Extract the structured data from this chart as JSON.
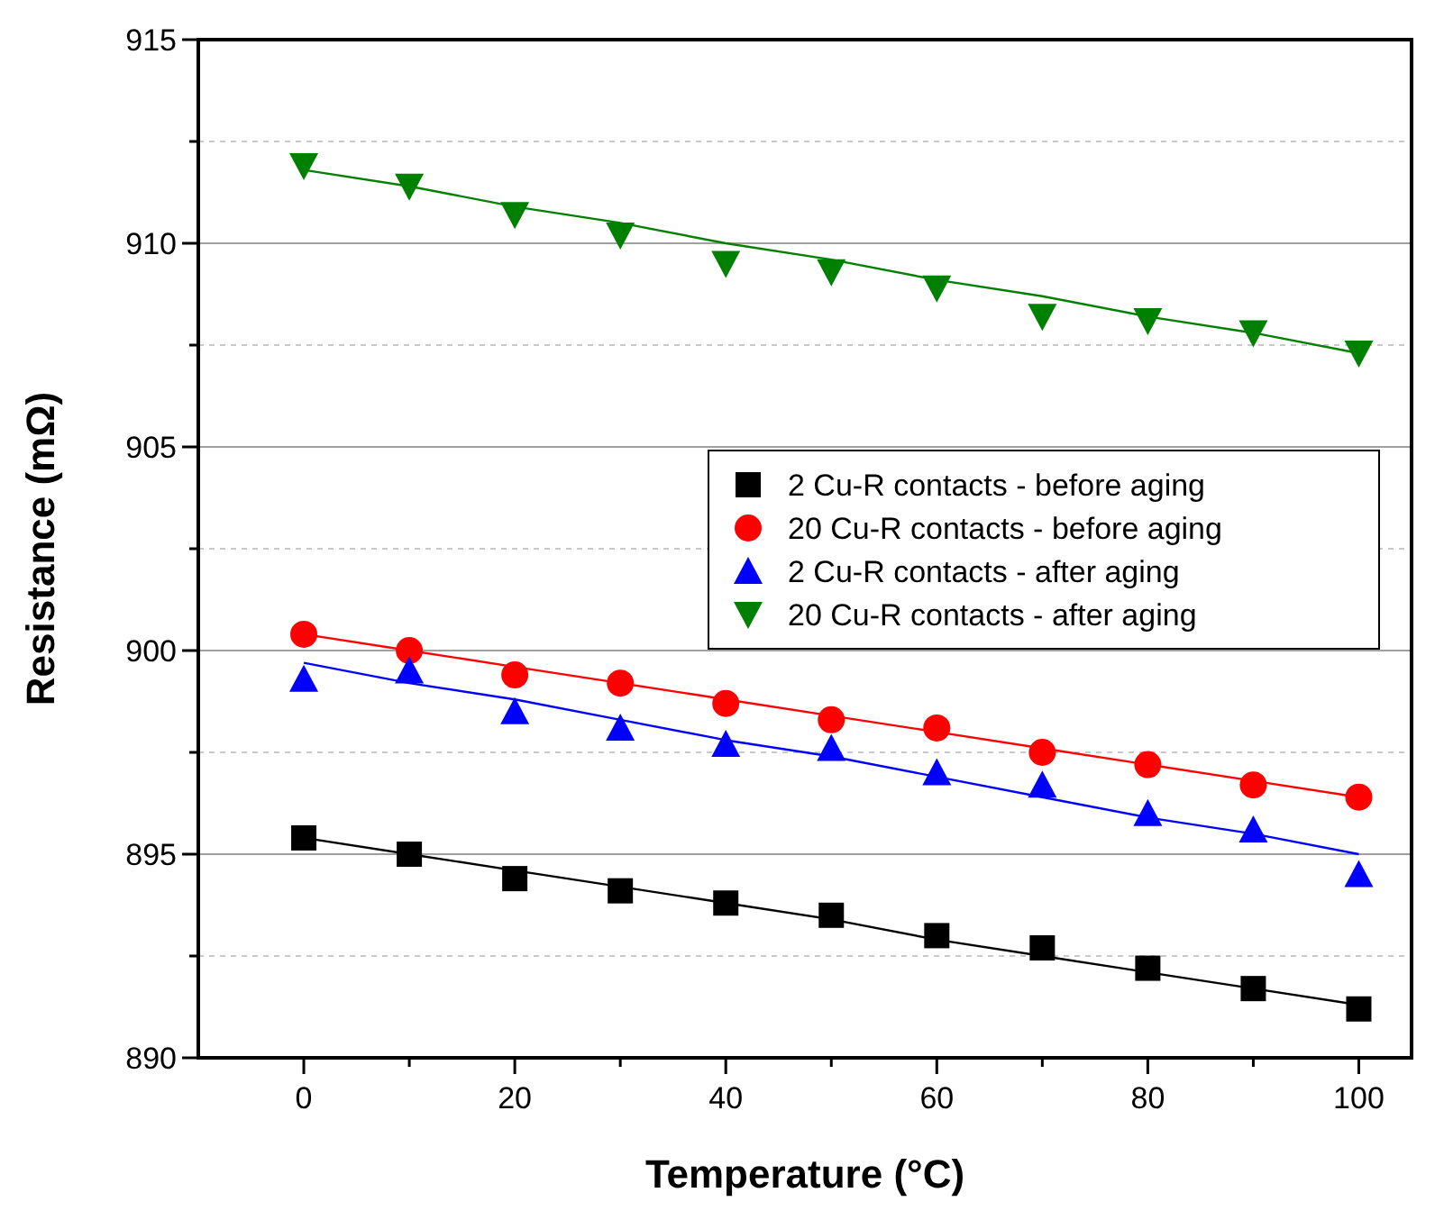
{
  "chart_data": {
    "type": "scatter",
    "xlabel": "Temperature (°C)",
    "ylabel": "Resistance (mΩ)",
    "x": [
      0,
      10,
      20,
      30,
      40,
      50,
      60,
      70,
      80,
      90,
      100
    ],
    "xlim": [
      -10,
      105
    ],
    "xticks": [
      0,
      {
        "value": 10,
        "label": null
      },
      20,
      {
        "value": 30,
        "label": null
      },
      40,
      {
        "value": 50,
        "label": null
      },
      60,
      {
        "value": 70,
        "label": null
      },
      80,
      {
        "value": 90,
        "label": null
      },
      100
    ],
    "ylim": [
      890,
      915
    ],
    "yticks": [
      890,
      {
        "value": 892.5,
        "label": null
      },
      895,
      {
        "value": 897.5,
        "label": null
      },
      900,
      {
        "value": 902.5,
        "label": null
      },
      905,
      {
        "value": 907.5,
        "label": null
      },
      910,
      {
        "value": 912.5,
        "label": null
      },
      915
    ],
    "grid": "y",
    "legend": "right",
    "series": [
      {
        "name": "2 Cu-R contacts - before aging",
        "color": "#000000",
        "marker": "square",
        "values": [
          895.4,
          895.0,
          894.4,
          894.1,
          893.8,
          893.5,
          893.0,
          892.7,
          892.2,
          891.7,
          891.2
        ]
      },
      {
        "name": "20 Cu-R contacts - before aging",
        "color": "#ff0000",
        "marker": "circle",
        "values": [
          900.4,
          900.0,
          899.4,
          899.2,
          898.7,
          898.3,
          898.1,
          897.5,
          897.2,
          896.7,
          896.4
        ]
      },
      {
        "name": "2 Cu-R contacts - after aging",
        "color": "#0000ff",
        "marker": "triangle",
        "values": [
          899.3,
          899.5,
          898.5,
          898.1,
          897.7,
          897.6,
          897.0,
          896.7,
          896.0,
          895.6,
          894.5
        ]
      },
      {
        "name": "20 Cu-R contacts - after aging",
        "color": "#008000",
        "marker": "triangle-down",
        "values": [
          911.9,
          911.4,
          910.7,
          910.2,
          909.5,
          909.3,
          908.9,
          908.2,
          908.1,
          907.8,
          907.3
        ]
      },
      {
        "type": "line",
        "color": "#000000",
        "values": [
          895.4,
          895.0,
          894.6,
          894.2,
          893.8,
          893.4,
          892.9,
          892.5,
          892.1,
          891.7,
          891.3
        ]
      },
      {
        "type": "line",
        "color": "#ff0000",
        "values": [
          900.4,
          900.0,
          899.6,
          899.2,
          898.8,
          898.4,
          898.0,
          897.6,
          897.2,
          896.8,
          896.4
        ]
      },
      {
        "type": "line",
        "color": "#0000ff",
        "values": [
          899.7,
          899.2,
          898.8,
          898.3,
          897.8,
          897.4,
          896.9,
          896.4,
          895.9,
          895.5,
          895.0
        ]
      },
      {
        "type": "line",
        "color": "#008000",
        "values": [
          911.8,
          911.4,
          910.9,
          910.5,
          910.0,
          909.6,
          909.1,
          908.7,
          908.2,
          907.8,
          907.3
        ]
      }
    ]
  }
}
